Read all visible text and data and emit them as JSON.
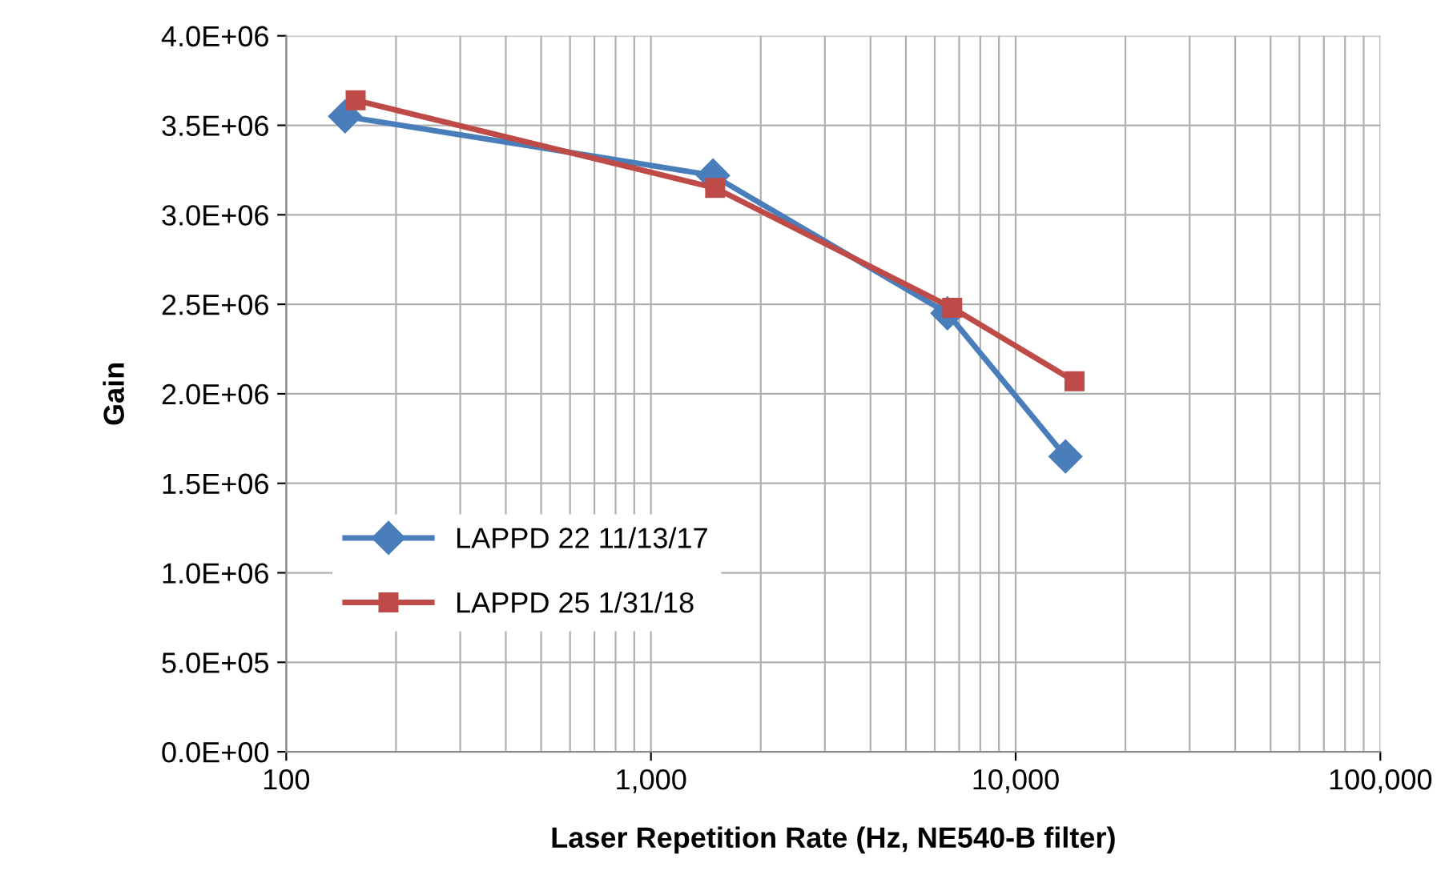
{
  "chart_data": {
    "type": "line",
    "xlabel": "Laser Repetition Rate (Hz, NE540-B filter)",
    "ylabel": "Gain",
    "series": [
      {
        "name": "LAPPD 22 11/13/17",
        "color": "#4a7ebb",
        "marker": "diamond",
        "x": [
          145,
          1480,
          6500,
          13700
        ],
        "values": [
          3550000,
          3220000,
          2450000,
          1650000
        ]
      },
      {
        "name": "LAPPD 25 1/31/18",
        "color": "#be4b48",
        "marker": "square",
        "x": [
          155,
          1500,
          6700,
          14500
        ],
        "values": [
          3640000,
          3150000,
          2480000,
          2070000
        ]
      }
    ],
    "log": "x",
    "xlim": [
      100,
      100000
    ],
    "xticks": [
      100,
      {
        "value": 1000,
        "label": "1,000"
      },
      {
        "value": 10000,
        "label": "10,000"
      },
      {
        "value": 100000,
        "label": "100,000"
      }
    ],
    "ylim": [
      0,
      4000000
    ],
    "yticks": [
      {
        "value": 0,
        "label": "0.0E+00"
      },
      {
        "value": 500000,
        "label": "5.0E+05"
      },
      {
        "value": 1000000,
        "label": "1.0E+06"
      },
      {
        "value": 1500000,
        "label": "1.5E+06"
      },
      {
        "value": 2000000,
        "label": "2.0E+06"
      },
      {
        "value": 2500000,
        "label": "2.5E+06"
      },
      {
        "value": 3000000,
        "label": "3.0E+06"
      },
      {
        "value": 3500000,
        "label": "3.5E+06"
      },
      {
        "value": 4000000,
        "label": "4.0E+06"
      }
    ],
    "grid": true,
    "legend": "center left",
    "line_style": "solid"
  }
}
